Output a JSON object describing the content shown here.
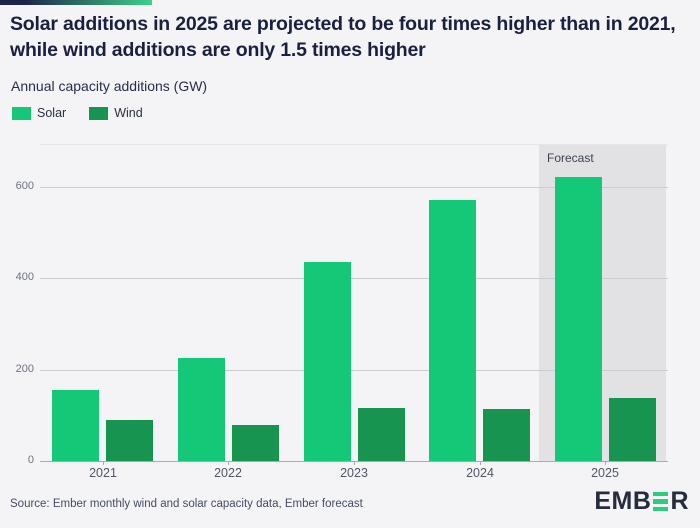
{
  "header": {
    "title": "Solar additions in 2025 are projected to be four times higher than in 2021, while wind additions are only 1.5 times higher",
    "subtitle": "Annual capacity additions (GW)"
  },
  "chart_data": {
    "type": "bar",
    "categories": [
      "2021",
      "2022",
      "2023",
      "2024",
      "2025"
    ],
    "series": [
      {
        "name": "Solar",
        "color": "#15c877",
        "values": [
          155,
          225,
          435,
          570,
          620
        ]
      },
      {
        "name": "Wind",
        "color": "#17944f",
        "values": [
          90,
          79,
          116,
          113,
          137
        ]
      }
    ],
    "title": "Solar additions in 2025 are projected to be four times higher than in 2021, while wind additions are only 1.5 times higher",
    "subtitle": "Annual capacity additions (GW)",
    "xlabel": "",
    "ylabel": "Annual capacity additions (GW)",
    "ylim": [
      0,
      650
    ],
    "yticks": [
      0,
      200,
      400,
      600
    ],
    "grid": true,
    "legend_position": "top-left",
    "forecast": {
      "label": "Forecast",
      "category": "2025"
    }
  },
  "footer": {
    "source": "Source: Ember monthly wind and solar capacity data, Ember forecast",
    "logo": {
      "left": "EMB",
      "right": "R",
      "name": "EMBER"
    }
  },
  "colors": {
    "background": "#f4f4f6",
    "solar": "#15c877",
    "wind": "#17944f",
    "forecast_band": "#e2e2e4",
    "gradient_start": "#1c2447",
    "gradient_end": "#3ed08c",
    "logo_green": "#29cf7e",
    "title_text": "#1a2040"
  }
}
